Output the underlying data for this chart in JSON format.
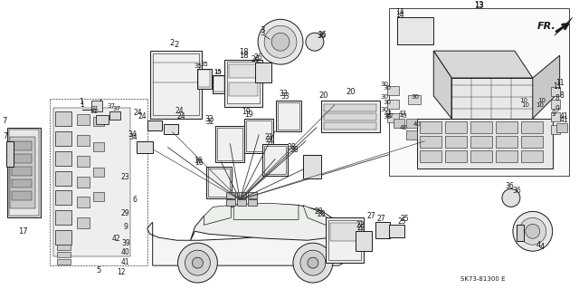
{
  "bg_color": "#ffffff",
  "line_color": "#1a1a1a",
  "diagram_code": "SK73-81300 E",
  "fr_label": "FR.",
  "figsize": [
    6.4,
    3.19
  ],
  "dpi": 100
}
